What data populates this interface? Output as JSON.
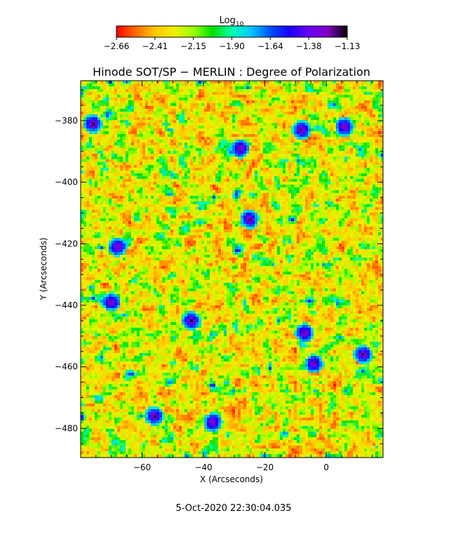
{
  "colorbar": {
    "label_main": "Log",
    "label_sub": "10",
    "ticks": [
      "-2.66",
      "-2.41",
      "-2.15",
      "-1.90",
      "-1.64",
      "-1.38",
      "-1.13"
    ],
    "range": [
      -2.66,
      -1.13
    ],
    "colormap": [
      "#ff0000",
      "#ff6a00",
      "#ffc800",
      "#f0f000",
      "#9bff00",
      "#00e000",
      "#00ffb0",
      "#00c8ff",
      "#0050ff",
      "#1a00ff",
      "#6a00ff",
      "#8000c0",
      "#000000"
    ]
  },
  "chart_data": {
    "type": "heatmap",
    "title": "Hinode SOT/SP − MERLIN : Degree of Polarization",
    "xlabel": "X (Arcseconds)",
    "ylabel": "Y (Arcseconds)",
    "xlim": [
      -80,
      18.5
    ],
    "ylim": [
      -489.5,
      -367
    ],
    "xticks": [
      -60,
      -40,
      -20,
      0
    ],
    "yticks": [
      -380,
      -400,
      -420,
      -440,
      -460,
      -480
    ],
    "xtick_labels": [
      "−60",
      "−40",
      "−20",
      "0"
    ],
    "ytick_labels": [
      "−380",
      "−400",
      "−420",
      "−440",
      "−460",
      "−480"
    ],
    "value_range": [
      -2.66,
      -1.13
    ],
    "value_label": "Log10 Degree of Polarization",
    "strong_features": [
      {
        "x": -76,
        "y": -381
      },
      {
        "x": -28,
        "y": -389
      },
      {
        "x": -25,
        "y": -412
      },
      {
        "x": 6,
        "y": -382
      },
      {
        "x": -8,
        "y": -383
      },
      {
        "x": -7,
        "y": -449
      },
      {
        "x": 12,
        "y": -456
      },
      {
        "x": -4,
        "y": -459
      },
      {
        "x": -44,
        "y": -445
      },
      {
        "x": -56,
        "y": -476
      },
      {
        "x": -70,
        "y": -439
      },
      {
        "x": -37,
        "y": -478
      },
      {
        "x": -68,
        "y": -421
      }
    ]
  },
  "timestamp": "5-Oct-2020 22:30:04.035"
}
